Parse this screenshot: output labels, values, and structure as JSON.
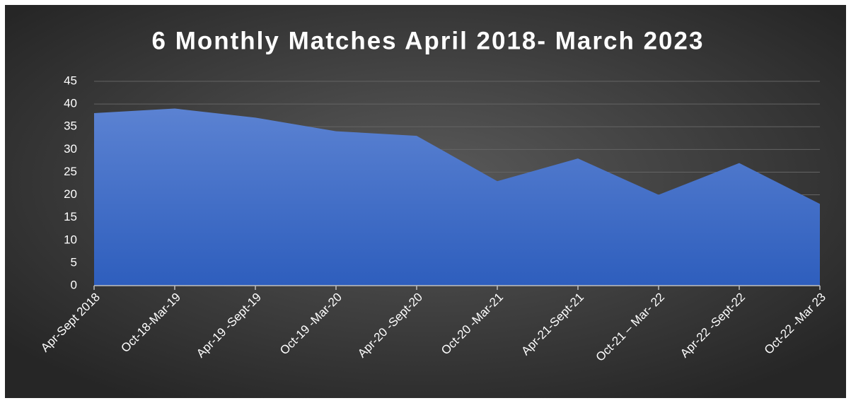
{
  "chart_data": {
    "type": "area",
    "title": "6 Monthly Matches April 2018- March 2023",
    "categories": [
      "Apr-Sept 2018",
      "Oct-18-Mar-19",
      "Apr-19 -Sept-19",
      "Oct-19 -Mar-20",
      "Apr-20 -Sept-20",
      "Oct-20 -Mar-21",
      "Apr-21-Sept-21",
      "Oct-21 – Mar- 22",
      "Apr-22 -Sept-22",
      "Oct-22 -Mar 23"
    ],
    "values": [
      38,
      39,
      37,
      34,
      33,
      23,
      28,
      20,
      27,
      18
    ],
    "color": "#4472c4",
    "ylim": [
      0,
      45
    ],
    "yticks": [
      0,
      5,
      10,
      15,
      20,
      25,
      30,
      35,
      40,
      45
    ],
    "grid": true
  }
}
